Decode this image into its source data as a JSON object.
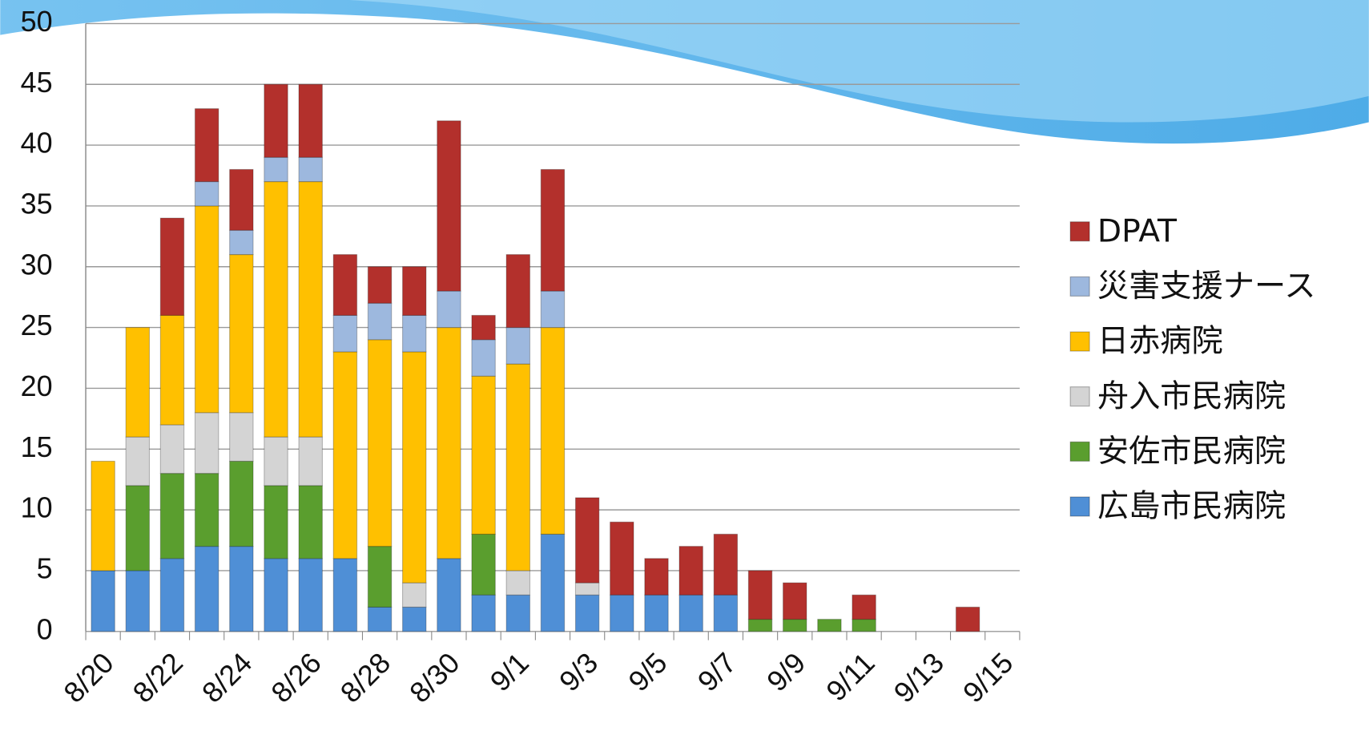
{
  "chart_data": {
    "type": "stacked_bar",
    "categories": [
      "8/20",
      null,
      "8/22",
      null,
      "8/24",
      null,
      "8/26",
      null,
      "8/28",
      null,
      "8/30",
      null,
      "9/1",
      null,
      "9/3",
      null,
      "9/5",
      null,
      "9/7",
      null,
      "9/9",
      null,
      "9/11",
      null,
      "9/13",
      null,
      "9/15"
    ],
    "series": [
      {
        "name": "広島市民病院",
        "color": "#4f8fd6",
        "values": [
          5,
          5,
          6,
          7,
          7,
          6,
          6,
          6,
          2,
          2,
          6,
          3,
          3,
          8,
          3,
          3,
          3,
          3,
          3,
          0,
          0,
          0,
          0,
          0,
          0,
          0,
          0
        ]
      },
      {
        "name": "安佐市民病院",
        "color": "#5a9e2e",
        "values": [
          0,
          7,
          7,
          6,
          7,
          6,
          6,
          0,
          5,
          0,
          0,
          5,
          0,
          0,
          0,
          0,
          0,
          0,
          0,
          1,
          1,
          1,
          1,
          0,
          0,
          0,
          0
        ]
      },
      {
        "name": "舟入市民病院",
        "color": "#d4d4d4",
        "values": [
          0,
          4,
          4,
          5,
          4,
          4,
          4,
          0,
          0,
          2,
          0,
          0,
          2,
          0,
          1,
          0,
          0,
          0,
          0,
          0,
          0,
          0,
          0,
          0,
          0,
          0,
          0
        ]
      },
      {
        "name": "日赤病院",
        "color": "#ffc000",
        "values": [
          9,
          9,
          9,
          17,
          13,
          21,
          21,
          17,
          17,
          19,
          19,
          13,
          17,
          17,
          0,
          0,
          0,
          0,
          0,
          0,
          0,
          0,
          0,
          0,
          0,
          0,
          0
        ]
      },
      {
        "name": "災害支援ナース",
        "color": "#9db8de",
        "values": [
          0,
          0,
          0,
          2,
          2,
          2,
          2,
          3,
          3,
          3,
          3,
          3,
          3,
          3,
          0,
          0,
          0,
          0,
          0,
          0,
          0,
          0,
          0,
          0,
          0,
          0,
          0
        ]
      },
      {
        "name": "DPAT",
        "color": "#b3302c",
        "values": [
          0,
          0,
          8,
          6,
          5,
          6,
          6,
          5,
          3,
          4,
          14,
          2,
          6,
          10,
          7,
          6,
          3,
          4,
          5,
          4,
          3,
          0,
          2,
          0,
          0,
          2,
          0
        ]
      }
    ],
    "ylim": [
      0,
      50
    ],
    "yticks": [
      0,
      5,
      10,
      15,
      20,
      25,
      30,
      35,
      40,
      45,
      50
    ],
    "grid": true,
    "legend": "right"
  }
}
